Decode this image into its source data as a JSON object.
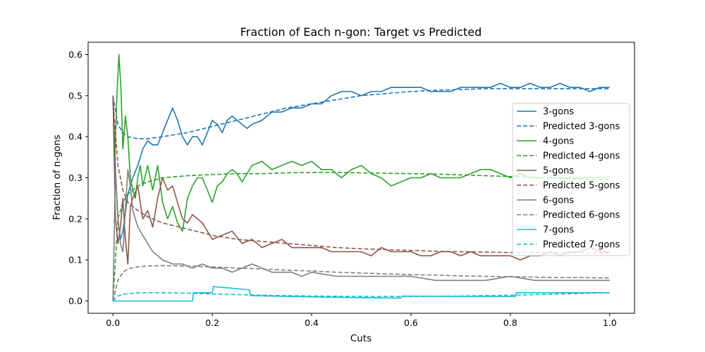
{
  "chart_data": {
    "type": "line",
    "title": "Fraction of Each n-gon: Target vs Predicted",
    "xlabel": "Cuts",
    "ylabel": "Fraction of n-gons",
    "xlim": [
      -0.05,
      1.05
    ],
    "ylim": [
      -0.03,
      0.63
    ],
    "xticks": [
      0.0,
      0.2,
      0.4,
      0.6,
      0.8,
      1.0
    ],
    "xtick_labels": [
      "0.0",
      "0.2",
      "0.4",
      "0.6",
      "0.8",
      "1.0"
    ],
    "yticks": [
      0.0,
      0.1,
      0.2,
      0.3,
      0.4,
      0.5,
      0.6
    ],
    "ytick_labels": [
      "0.0",
      "0.1",
      "0.2",
      "0.3",
      "0.4",
      "0.5",
      "0.6"
    ],
    "legend_position": "right",
    "grid": false,
    "series": [
      {
        "name": "3-gons",
        "color": "#1f77b4",
        "style": "solid",
        "x": [
          0.0,
          0.005,
          0.01,
          0.015,
          0.02,
          0.03,
          0.04,
          0.05,
          0.06,
          0.07,
          0.08,
          0.09,
          0.1,
          0.11,
          0.12,
          0.13,
          0.14,
          0.15,
          0.16,
          0.17,
          0.18,
          0.19,
          0.2,
          0.21,
          0.22,
          0.23,
          0.24,
          0.25,
          0.26,
          0.27,
          0.28,
          0.3,
          0.32,
          0.34,
          0.36,
          0.38,
          0.4,
          0.42,
          0.44,
          0.46,
          0.48,
          0.5,
          0.52,
          0.54,
          0.56,
          0.58,
          0.6,
          0.62,
          0.64,
          0.66,
          0.68,
          0.7,
          0.72,
          0.74,
          0.76,
          0.78,
          0.8,
          0.82,
          0.84,
          0.86,
          0.88,
          0.9,
          0.92,
          0.94,
          0.96,
          0.98,
          1.0
        ],
        "y": [
          0.5,
          0.32,
          0.2,
          0.15,
          0.17,
          0.26,
          0.3,
          0.33,
          0.37,
          0.39,
          0.38,
          0.38,
          0.41,
          0.44,
          0.47,
          0.44,
          0.4,
          0.38,
          0.4,
          0.4,
          0.38,
          0.41,
          0.44,
          0.43,
          0.41,
          0.44,
          0.45,
          0.44,
          0.43,
          0.42,
          0.43,
          0.44,
          0.46,
          0.46,
          0.47,
          0.47,
          0.48,
          0.48,
          0.5,
          0.51,
          0.51,
          0.5,
          0.51,
          0.51,
          0.52,
          0.52,
          0.52,
          0.52,
          0.51,
          0.51,
          0.51,
          0.52,
          0.52,
          0.52,
          0.52,
          0.53,
          0.52,
          0.52,
          0.53,
          0.52,
          0.52,
          0.53,
          0.52,
          0.52,
          0.51,
          0.52,
          0.52
        ]
      },
      {
        "name": "Predicted 3-gons",
        "color": "#1f77b4",
        "style": "dashed",
        "x": [
          0.0,
          0.01,
          0.02,
          0.03,
          0.05,
          0.07,
          0.1,
          0.15,
          0.2,
          0.25,
          0.3,
          0.35,
          0.4,
          0.45,
          0.5,
          0.55,
          0.6,
          0.65,
          0.7,
          0.75,
          0.8,
          0.85,
          0.9,
          0.95,
          1.0
        ],
        "y": [
          0.5,
          0.43,
          0.41,
          0.4,
          0.395,
          0.395,
          0.4,
          0.41,
          0.425,
          0.44,
          0.455,
          0.47,
          0.48,
          0.49,
          0.5,
          0.505,
          0.51,
          0.513,
          0.515,
          0.517,
          0.517,
          0.517,
          0.517,
          0.517,
          0.517
        ]
      },
      {
        "name": "4-gons",
        "color": "#2ca02c",
        "style": "solid",
        "x": [
          0.0,
          0.004,
          0.008,
          0.012,
          0.016,
          0.02,
          0.025,
          0.03,
          0.035,
          0.04,
          0.045,
          0.05,
          0.055,
          0.06,
          0.07,
          0.08,
          0.09,
          0.1,
          0.11,
          0.12,
          0.13,
          0.14,
          0.15,
          0.16,
          0.17,
          0.18,
          0.19,
          0.2,
          0.21,
          0.22,
          0.23,
          0.24,
          0.25,
          0.26,
          0.28,
          0.3,
          0.32,
          0.34,
          0.36,
          0.38,
          0.4,
          0.42,
          0.44,
          0.46,
          0.48,
          0.5,
          0.52,
          0.54,
          0.56,
          0.58,
          0.6,
          0.62,
          0.64,
          0.66,
          0.68,
          0.7,
          0.72,
          0.74,
          0.76,
          0.78,
          0.8,
          0.82,
          0.84,
          0.86,
          0.88,
          0.9,
          0.92,
          0.94,
          0.96,
          0.98,
          1.0
        ],
        "y": [
          0.5,
          0.35,
          0.5,
          0.6,
          0.52,
          0.37,
          0.45,
          0.4,
          0.3,
          0.27,
          0.25,
          0.3,
          0.33,
          0.28,
          0.33,
          0.27,
          0.33,
          0.24,
          0.2,
          0.23,
          0.19,
          0.17,
          0.25,
          0.28,
          0.3,
          0.3,
          0.27,
          0.24,
          0.28,
          0.29,
          0.31,
          0.32,
          0.31,
          0.29,
          0.33,
          0.34,
          0.32,
          0.33,
          0.34,
          0.33,
          0.34,
          0.32,
          0.32,
          0.3,
          0.32,
          0.33,
          0.31,
          0.3,
          0.28,
          0.29,
          0.3,
          0.3,
          0.31,
          0.3,
          0.3,
          0.3,
          0.31,
          0.32,
          0.32,
          0.31,
          0.3,
          0.31,
          0.3,
          0.3,
          0.3,
          0.3,
          0.3,
          0.3,
          0.3,
          0.3,
          0.3
        ]
      },
      {
        "name": "Predicted 4-gons",
        "color": "#2ca02c",
        "style": "dashed",
        "x": [
          0.0,
          0.01,
          0.02,
          0.03,
          0.05,
          0.07,
          0.1,
          0.15,
          0.2,
          0.25,
          0.3,
          0.35,
          0.4,
          0.45,
          0.5,
          0.55,
          0.6,
          0.65,
          0.7,
          0.75,
          0.8,
          0.85,
          0.9,
          0.95,
          1.0
        ],
        "y": [
          0.0,
          0.2,
          0.24,
          0.26,
          0.28,
          0.29,
          0.3,
          0.305,
          0.308,
          0.31,
          0.31,
          0.312,
          0.313,
          0.313,
          0.312,
          0.311,
          0.31,
          0.309,
          0.307,
          0.305,
          0.303,
          0.301,
          0.299,
          0.297,
          0.295
        ]
      },
      {
        "name": "5-gons",
        "color": "#8c564b",
        "style": "solid",
        "x": [
          0.0,
          0.005,
          0.01,
          0.015,
          0.02,
          0.025,
          0.03,
          0.035,
          0.04,
          0.05,
          0.06,
          0.07,
          0.08,
          0.09,
          0.1,
          0.11,
          0.12,
          0.13,
          0.14,
          0.15,
          0.16,
          0.18,
          0.2,
          0.22,
          0.24,
          0.26,
          0.28,
          0.3,
          0.32,
          0.34,
          0.36,
          0.38,
          0.4,
          0.42,
          0.44,
          0.46,
          0.48,
          0.5,
          0.52,
          0.54,
          0.56,
          0.58,
          0.6,
          0.62,
          0.64,
          0.66,
          0.68,
          0.7,
          0.72,
          0.74,
          0.76,
          0.78,
          0.8,
          0.82,
          0.84,
          0.86,
          0.88,
          0.9,
          0.92,
          0.94,
          0.96,
          0.98,
          1.0
        ],
        "y": [
          0.5,
          0.2,
          0.14,
          0.18,
          0.25,
          0.15,
          0.09,
          0.23,
          0.25,
          0.28,
          0.2,
          0.22,
          0.18,
          0.25,
          0.3,
          0.27,
          0.28,
          0.24,
          0.2,
          0.19,
          0.21,
          0.19,
          0.15,
          0.16,
          0.17,
          0.14,
          0.15,
          0.13,
          0.14,
          0.15,
          0.13,
          0.13,
          0.13,
          0.13,
          0.12,
          0.12,
          0.12,
          0.12,
          0.11,
          0.13,
          0.12,
          0.12,
          0.12,
          0.11,
          0.11,
          0.12,
          0.12,
          0.11,
          0.12,
          0.11,
          0.11,
          0.11,
          0.11,
          0.1,
          0.11,
          0.11,
          0.12,
          0.11,
          0.12,
          0.12,
          0.13,
          0.12,
          0.12
        ]
      },
      {
        "name": "Predicted 5-gons",
        "color": "#8c564b",
        "style": "dashed",
        "x": [
          0.0,
          0.01,
          0.02,
          0.03,
          0.05,
          0.07,
          0.1,
          0.15,
          0.2,
          0.25,
          0.3,
          0.35,
          0.4,
          0.45,
          0.5,
          0.55,
          0.6,
          0.65,
          0.7,
          0.75,
          0.8,
          0.85,
          0.9,
          0.95,
          1.0
        ],
        "y": [
          0.49,
          0.33,
          0.27,
          0.24,
          0.22,
          0.205,
          0.19,
          0.175,
          0.16,
          0.15,
          0.145,
          0.14,
          0.135,
          0.13,
          0.127,
          0.125,
          0.123,
          0.121,
          0.12,
          0.119,
          0.118,
          0.118,
          0.117,
          0.117,
          0.117
        ]
      },
      {
        "name": "6-gons",
        "color": "#7f7f7f",
        "style": "solid",
        "x": [
          0.0,
          0.005,
          0.01,
          0.015,
          0.02,
          0.025,
          0.03,
          0.035,
          0.04,
          0.05,
          0.06,
          0.07,
          0.08,
          0.1,
          0.12,
          0.14,
          0.16,
          0.18,
          0.2,
          0.22,
          0.24,
          0.26,
          0.28,
          0.3,
          0.32,
          0.34,
          0.36,
          0.38,
          0.4,
          0.45,
          0.5,
          0.55,
          0.6,
          0.65,
          0.7,
          0.75,
          0.8,
          0.85,
          0.9,
          0.95,
          1.0
        ],
        "y": [
          0.0,
          0.32,
          0.2,
          0.14,
          0.12,
          0.22,
          0.32,
          0.28,
          0.22,
          0.18,
          0.16,
          0.14,
          0.12,
          0.1,
          0.09,
          0.09,
          0.08,
          0.09,
          0.08,
          0.08,
          0.07,
          0.08,
          0.09,
          0.08,
          0.07,
          0.07,
          0.07,
          0.06,
          0.07,
          0.06,
          0.06,
          0.06,
          0.06,
          0.05,
          0.05,
          0.05,
          0.06,
          0.05,
          0.05,
          0.05,
          0.05
        ]
      },
      {
        "name": "Predicted 6-gons",
        "color": "#7f7f7f",
        "style": "dashed",
        "x": [
          0.0,
          0.01,
          0.02,
          0.03,
          0.05,
          0.07,
          0.1,
          0.15,
          0.2,
          0.25,
          0.3,
          0.35,
          0.4,
          0.45,
          0.5,
          0.55,
          0.6,
          0.65,
          0.7,
          0.75,
          0.8,
          0.85,
          0.9,
          0.95,
          1.0
        ],
        "y": [
          0.0,
          0.05,
          0.07,
          0.078,
          0.083,
          0.085,
          0.086,
          0.085,
          0.083,
          0.08,
          0.078,
          0.075,
          0.073,
          0.07,
          0.068,
          0.066,
          0.064,
          0.063,
          0.061,
          0.06,
          0.059,
          0.058,
          0.057,
          0.057,
          0.056
        ]
      },
      {
        "name": "7-gons",
        "color": "#17becf",
        "style": "solid",
        "x": [
          0.0,
          0.01,
          0.012,
          0.16,
          0.162,
          0.2,
          0.202,
          0.275,
          0.277,
          0.4,
          0.5,
          0.58,
          0.582,
          0.7,
          0.8,
          0.81,
          0.812,
          1.0
        ],
        "y": [
          0.0,
          0.0,
          0.0,
          0.0,
          0.02,
          0.02,
          0.035,
          0.027,
          0.013,
          0.01,
          0.008,
          0.007,
          0.012,
          0.011,
          0.011,
          0.011,
          0.02,
          0.02
        ]
      },
      {
        "name": "Predicted 7-gons",
        "color": "#17becf",
        "style": "dashed",
        "x": [
          0.0,
          0.01,
          0.02,
          0.04,
          0.06,
          0.08,
          0.1,
          0.15,
          0.2,
          0.3,
          0.4,
          0.5,
          0.6,
          0.7,
          0.8,
          0.9,
          1.0
        ],
        "y": [
          0.0,
          0.012,
          0.016,
          0.019,
          0.02,
          0.02,
          0.02,
          0.019,
          0.017,
          0.014,
          0.012,
          0.011,
          0.011,
          0.012,
          0.014,
          0.017,
          0.02
        ]
      }
    ]
  }
}
